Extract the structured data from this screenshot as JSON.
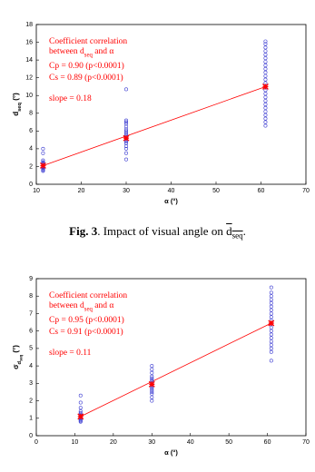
{
  "chart_data": [
    {
      "type": "scatter",
      "xlim": [
        10,
        70
      ],
      "xticks": [
        10,
        20,
        30,
        40,
        50,
        60,
        70
      ],
      "ylim": [
        0,
        18
      ],
      "yticks": [
        0,
        2,
        4,
        6,
        8,
        10,
        12,
        14,
        16,
        18
      ],
      "xlabel": "α (°)",
      "ylabel": [
        {
          "text": "d"
        },
        {
          "text": "seq",
          "sub": 1
        },
        {
          "text": " (°)"
        }
      ],
      "annotations": [
        [
          {
            "text": "Coefficient correlation"
          }
        ],
        [
          {
            "text": "between d"
          },
          {
            "text": "seq",
            "sub": 1
          },
          {
            "text": " and α"
          }
        ],
        [
          {
            "text": "Cp = 0.90 (p<0.0001)"
          }
        ],
        [
          {
            "text": "Cs = 0.89 (p<0.0001)"
          }
        ],
        [
          {
            "text": "slope = 0.18"
          }
        ]
      ],
      "color": "#3b3bd1",
      "fit_color": "#ff0000",
      "groups": [
        {
          "x": 11.5,
          "values": [
            1.5,
            1.6,
            1.7,
            1.8,
            1.9,
            2.0,
            2.1,
            2.2,
            2.3,
            2.4,
            2.5,
            2.7,
            3.5,
            4.0
          ]
        },
        {
          "x": 30,
          "values": [
            2.8,
            3.5,
            4.0,
            4.3,
            4.6,
            4.8,
            5.0,
            5.2,
            5.4,
            5.6,
            5.8,
            6.0,
            6.2,
            6.5,
            6.8,
            7.0,
            7.2,
            10.7
          ]
        },
        {
          "x": 61,
          "values": [
            6.6,
            7.0,
            7.4,
            7.8,
            8.2,
            8.6,
            9.0,
            9.4,
            9.8,
            10.2,
            10.6,
            11.0,
            11.4,
            11.8,
            12.2,
            12.6,
            13.0,
            13.4,
            13.8,
            14.2,
            14.6,
            15.0,
            15.4,
            15.8,
            16.1
          ]
        }
      ],
      "means": {
        "x": [
          11.5,
          30,
          61
        ],
        "y": [
          2.1,
          5.2,
          11
        ]
      },
      "fit": {
        "x": [
          11.5,
          61
        ],
        "y": [
          2.1,
          11
        ]
      },
      "caption": [
        {
          "text": "Fig. 3",
          "bold": true
        },
        {
          "text": ". Impact of visual angle on "
        },
        {
          "text": "d",
          "overline": true
        },
        {
          "text": "seq",
          "sub": 1,
          "overline": true
        },
        {
          "text": "."
        }
      ]
    },
    {
      "type": "scatter",
      "xlim": [
        0,
        70
      ],
      "xticks": [
        0,
        10,
        20,
        30,
        40,
        50,
        60,
        70
      ],
      "ylim": [
        0,
        9
      ],
      "yticks": [
        0,
        1,
        2,
        3,
        4,
        5,
        6,
        7,
        8,
        9
      ],
      "xlabel": "α (°)",
      "ylabel": [
        {
          "text": "σ"
        },
        {
          "text": "d",
          "sub": 1
        },
        {
          "text": "seq",
          "sub": 2
        },
        {
          "text": " (°)"
        }
      ],
      "annotations": [
        [
          {
            "text": "Coefficient correlation"
          }
        ],
        [
          {
            "text": "between d"
          },
          {
            "text": "seq",
            "sub": 1
          },
          {
            "text": " and α"
          }
        ],
        [
          {
            "text": "Cp = 0.95 (p<0.0001)"
          }
        ],
        [
          {
            "text": "Cs = 0.91 (p<0.0001)"
          }
        ],
        [
          {
            "text": "slope = 0.11"
          }
        ]
      ],
      "color": "#3b3bd1",
      "fit_color": "#ff0000",
      "groups": [
        {
          "x": 11.5,
          "values": [
            0.8,
            0.85,
            0.9,
            0.95,
            1.0,
            1.05,
            1.1,
            1.15,
            1.2,
            1.3,
            1.4,
            1.6,
            1.9,
            2.3
          ]
        },
        {
          "x": 30,
          "values": [
            2.0,
            2.2,
            2.4,
            2.5,
            2.6,
            2.7,
            2.8,
            2.9,
            3.0,
            3.1,
            3.2,
            3.3,
            3.4,
            3.6,
            3.8,
            4.0
          ]
        },
        {
          "x": 61,
          "values": [
            4.3,
            4.8,
            5.0,
            5.2,
            5.4,
            5.6,
            5.8,
            6.0,
            6.2,
            6.4,
            6.6,
            6.8,
            7.0,
            7.2,
            7.4,
            7.6,
            7.8,
            8.0,
            8.2,
            8.5
          ]
        }
      ],
      "means": {
        "x": [
          11.5,
          30,
          61
        ],
        "y": [
          1.1,
          2.95,
          6.45
        ]
      },
      "fit": {
        "x": [
          11.5,
          61
        ],
        "y": [
          1.1,
          6.45
        ]
      }
    }
  ]
}
